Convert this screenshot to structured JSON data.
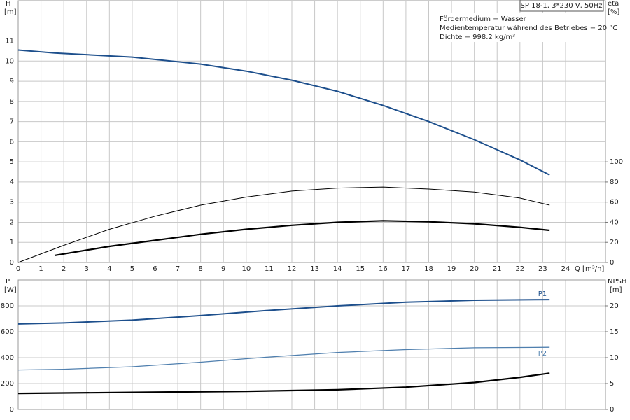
{
  "chart_data": [
    {
      "type": "line",
      "header": "SP 18-1, 3*230 V, 50Hz",
      "notes": [
        "Fördermedium = Wasser",
        "Medientemperatur während des Betriebes = 20 °C",
        "Dichte = 998.2 kg/m³"
      ],
      "xlabel": "Q [m³/h]",
      "ylabel": [
        "H",
        "[m]"
      ],
      "y2label": [
        "eta",
        "[%]"
      ],
      "xlim": [
        0,
        25.75
      ],
      "xticks": [
        0,
        1,
        2,
        3,
        4,
        5,
        6,
        7,
        8,
        9,
        10,
        11,
        12,
        13,
        14,
        15,
        16,
        17,
        18,
        19,
        20,
        21,
        22,
        23,
        24
      ],
      "ylim": [
        0,
        13
      ],
      "yticks": [
        0,
        1,
        2,
        3,
        4,
        5,
        6,
        7,
        8,
        9,
        10,
        11
      ],
      "y2lim": [
        0,
        260
      ],
      "y2ticks": [
        0,
        20,
        40,
        60,
        80,
        100
      ],
      "grid": true,
      "series": [
        {
          "color": "#1d4f8c",
          "linewidth": 2,
          "x": [
            0,
            1.6,
            5,
            8,
            10,
            12,
            14,
            16,
            18,
            20,
            22,
            23.3
          ],
          "values": [
            10.55,
            10.4,
            10.2,
            9.85,
            9.5,
            9.05,
            8.5,
            7.8,
            7.0,
            6.1,
            5.1,
            4.35
          ]
        },
        {
          "color": "#000000",
          "linewidth": 1,
          "axis": "y2",
          "x": [
            0,
            2,
            4,
            6,
            8,
            10,
            12,
            14,
            16,
            18,
            20,
            22,
            23.3
          ],
          "values": [
            0,
            17,
            33,
            46,
            57,
            65,
            71,
            74,
            75,
            73,
            70,
            64,
            57
          ]
        },
        {
          "color": "#000000",
          "linewidth": 2.2,
          "axis": "y2",
          "x": [
            1.6,
            4,
            6,
            8,
            10,
            12,
            14,
            16,
            18,
            20,
            22,
            23.3
          ],
          "values": [
            7,
            16,
            22,
            28,
            33,
            37,
            40,
            41.5,
            40.5,
            38.5,
            35,
            32
          ]
        }
      ]
    },
    {
      "type": "line",
      "ylabel": [
        "P",
        "[W]"
      ],
      "y2label": [
        "NPSH",
        "[m]"
      ],
      "xlim": [
        0,
        25.75
      ],
      "ylim": [
        0,
        1000
      ],
      "yticks": [
        0,
        200,
        400,
        600,
        800
      ],
      "y2lim": [
        0,
        25
      ],
      "y2ticks": [
        0,
        5,
        10,
        15,
        20
      ],
      "grid": true,
      "series": [
        {
          "name": "P1",
          "color": "#1d4f8c",
          "linewidth": 2,
          "x": [
            0,
            2,
            5,
            8,
            11,
            14,
            17,
            20,
            23.3
          ],
          "values": [
            660,
            668,
            690,
            725,
            765,
            800,
            828,
            843,
            848
          ]
        },
        {
          "name": "P2",
          "color": "#4f7fae",
          "linewidth": 1.3,
          "x": [
            0,
            2,
            5,
            8,
            11,
            14,
            17,
            20,
            23.3
          ],
          "values": [
            305,
            310,
            330,
            365,
            405,
            440,
            462,
            476,
            480
          ]
        },
        {
          "color": "#000000",
          "linewidth": 2.2,
          "axis": "y2",
          "x": [
            0,
            5,
            10,
            14,
            17,
            20,
            22,
            23.3
          ],
          "values": [
            3.1,
            3.3,
            3.5,
            3.8,
            4.3,
            5.2,
            6.2,
            7.0
          ]
        }
      ]
    }
  ]
}
